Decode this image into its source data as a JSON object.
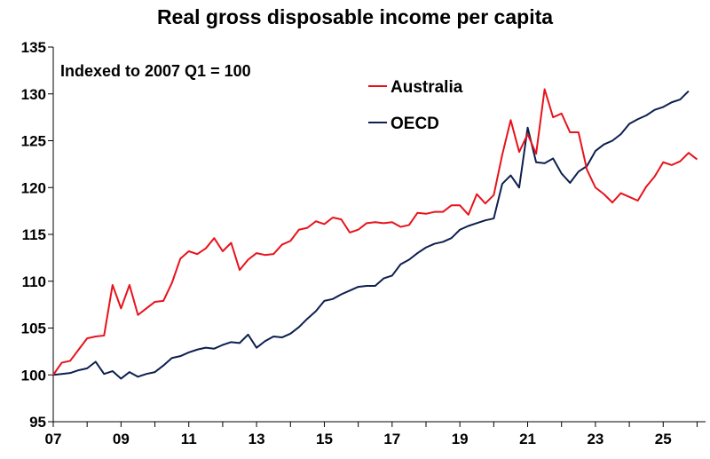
{
  "chart_data": {
    "type": "line",
    "title": "Real gross disposable income per capita",
    "annotation": "Indexed to 2007 Q1 = 100",
    "xlabel": "",
    "ylabel": "",
    "xlim": [
      2007.0,
      2026.25
    ],
    "ylim": [
      95,
      135
    ],
    "yticks": [
      95,
      100,
      105,
      110,
      115,
      120,
      125,
      130,
      135
    ],
    "xticks": [
      {
        "value": 2007,
        "label": "07"
      },
      {
        "value": 2009,
        "label": "09"
      },
      {
        "value": 2011,
        "label": "11"
      },
      {
        "value": 2013,
        "label": "13"
      },
      {
        "value": 2015,
        "label": "15"
      },
      {
        "value": 2017,
        "label": "17"
      },
      {
        "value": 2019,
        "label": "19"
      },
      {
        "value": 2021,
        "label": "21"
      },
      {
        "value": 2023,
        "label": "23"
      },
      {
        "value": 2025,
        "label": "25"
      }
    ],
    "grid": false,
    "legend_position": "top-center",
    "x": [
      2007.0,
      2007.25,
      2007.5,
      2007.75,
      2008.0,
      2008.25,
      2008.5,
      2008.75,
      2009.0,
      2009.25,
      2009.5,
      2009.75,
      2010.0,
      2010.25,
      2010.5,
      2010.75,
      2011.0,
      2011.25,
      2011.5,
      2011.75,
      2012.0,
      2012.25,
      2012.5,
      2012.75,
      2013.0,
      2013.25,
      2013.5,
      2013.75,
      2014.0,
      2014.25,
      2014.5,
      2014.75,
      2015.0,
      2015.25,
      2015.5,
      2015.75,
      2016.0,
      2016.25,
      2016.5,
      2016.75,
      2017.0,
      2017.25,
      2017.5,
      2017.75,
      2018.0,
      2018.25,
      2018.5,
      2018.75,
      2019.0,
      2019.25,
      2019.5,
      2019.75,
      2020.0,
      2020.25,
      2020.5,
      2020.75,
      2021.0,
      2021.25,
      2021.5,
      2021.75,
      2022.0,
      2022.25,
      2022.5,
      2022.75,
      2023.0,
      2023.25,
      2023.5,
      2023.75,
      2024.0,
      2024.25,
      2024.5,
      2024.75,
      2025.0,
      2025.25,
      2025.5,
      2025.75,
      2026.0
    ],
    "series": [
      {
        "name": "Australia",
        "color": "#e8121b",
        "values": [
          100.0,
          101.3,
          101.5,
          102.7,
          103.9,
          104.1,
          104.2,
          109.6,
          107.1,
          109.6,
          106.4,
          107.1,
          107.8,
          107.9,
          109.8,
          112.4,
          113.2,
          112.9,
          113.5,
          114.6,
          113.2,
          114.1,
          111.2,
          112.3,
          113.0,
          112.8,
          112.9,
          113.9,
          114.3,
          115.5,
          115.7,
          116.4,
          116.1,
          116.8,
          116.6,
          115.2,
          115.5,
          116.2,
          116.3,
          116.2,
          116.3,
          115.8,
          116.0,
          117.3,
          117.2,
          117.4,
          117.4,
          118.1,
          118.1,
          117.1,
          119.3,
          118.3,
          119.2,
          123.5,
          127.2,
          123.8,
          125.7,
          123.6,
          130.5,
          127.5,
          127.9,
          125.9,
          125.9,
          121.9,
          120.0,
          119.3,
          118.4,
          119.4,
          119.0,
          118.6,
          120.1,
          121.2,
          122.7,
          122.4,
          122.8,
          123.7,
          123.0
        ]
      },
      {
        "name": "OECD",
        "color": "#0d1f4e",
        "values": [
          100.0,
          100.1,
          100.2,
          100.5,
          100.7,
          101.4,
          100.1,
          100.4,
          99.6,
          100.3,
          99.8,
          100.1,
          100.3,
          101.0,
          101.8,
          102.0,
          102.4,
          102.7,
          102.9,
          102.8,
          103.2,
          103.5,
          103.4,
          104.3,
          102.9,
          103.6,
          104.1,
          104.0,
          104.4,
          105.1,
          106.0,
          106.8,
          107.9,
          108.1,
          108.6,
          109.0,
          109.4,
          109.5,
          109.5,
          110.3,
          110.6,
          111.8,
          112.3,
          113.0,
          113.6,
          114.0,
          114.2,
          114.6,
          115.5,
          115.9,
          116.2,
          116.5,
          116.7,
          120.4,
          121.3,
          120.0,
          126.4,
          122.7,
          122.6,
          123.1,
          121.5,
          120.5,
          121.7,
          122.3,
          123.9,
          124.6,
          125.0,
          125.7,
          126.8,
          127.3,
          127.7,
          128.3,
          128.6,
          129.1,
          129.4,
          130.3,
          null
        ]
      }
    ]
  }
}
